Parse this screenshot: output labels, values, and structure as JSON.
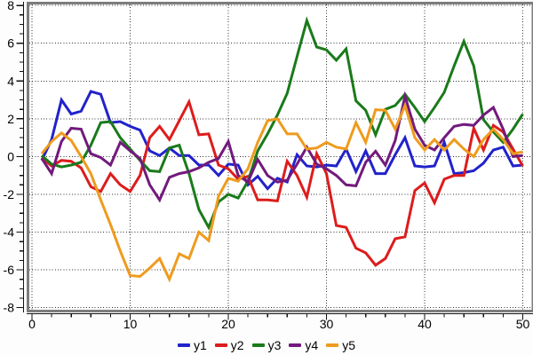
{
  "chart_data": {
    "type": "line",
    "x": [
      1,
      2,
      3,
      4,
      5,
      6,
      7,
      8,
      9,
      10,
      11,
      12,
      13,
      14,
      15,
      16,
      17,
      18,
      19,
      20,
      21,
      22,
      23,
      24,
      25,
      26,
      27,
      28,
      29,
      30,
      31,
      32,
      33,
      34,
      35,
      36,
      37,
      38,
      39,
      40,
      41,
      42,
      43,
      44,
      45,
      46,
      47,
      48,
      49,
      50
    ],
    "series": [
      {
        "name": "y1",
        "color": "#2222cc",
        "values": [
          -0.2,
          0.9,
          3.0,
          2.25,
          2.4,
          3.45,
          3.3,
          1.8,
          1.85,
          1.6,
          1.4,
          0.3,
          0.05,
          0.45,
          0.05,
          0.05,
          -0.45,
          -0.45,
          -1.0,
          -0.4,
          -0.45,
          -1.5,
          -1.05,
          -1.7,
          -1.15,
          -1.35,
          0.1,
          -0.5,
          -0.55,
          -0.45,
          -0.5,
          0.4,
          -0.8,
          0.3,
          -0.9,
          -0.9,
          0.1,
          1.0,
          -0.5,
          -0.55,
          -0.5,
          0.75,
          -0.9,
          -0.85,
          -0.75,
          -0.35,
          0.35,
          0.5,
          -0.5,
          -0.45
        ]
      },
      {
        "name": "y2",
        "color": "#dd1c1c",
        "values": [
          -0.05,
          -0.5,
          -0.2,
          -0.25,
          -0.6,
          -1.6,
          -1.85,
          -0.9,
          -1.5,
          -1.85,
          -1.0,
          1.0,
          1.6,
          0.9,
          1.9,
          2.9,
          1.15,
          1.2,
          -0.45,
          -0.65,
          -1.2,
          -1.05,
          -2.3,
          -2.3,
          -2.35,
          -0.25,
          -1.0,
          -2.15,
          0.15,
          -0.9,
          -3.65,
          -3.75,
          -4.85,
          -5.1,
          -5.75,
          -5.4,
          -4.35,
          -4.25,
          -1.8,
          -1.4,
          -2.45,
          -1.2,
          -1.0,
          -1.0,
          1.5,
          0.35,
          1.65,
          1.3,
          0.4,
          -0.5
        ]
      },
      {
        "name": "y3",
        "color": "#1a7a1a",
        "values": [
          0.05,
          -0.4,
          -0.55,
          -0.45,
          -0.3,
          0.6,
          1.8,
          1.85,
          1.0,
          0.4,
          -0.2,
          -0.75,
          -0.8,
          0.45,
          0.6,
          -0.9,
          -2.8,
          -3.75,
          -2.4,
          -2.0,
          -2.2,
          -1.3,
          0.3,
          1.2,
          2.2,
          3.35,
          5.3,
          7.2,
          5.8,
          5.65,
          5.1,
          5.7,
          2.95,
          2.45,
          1.15,
          2.5,
          2.7,
          3.3,
          2.6,
          1.85,
          2.6,
          3.4,
          4.8,
          6.1,
          4.8,
          1.95,
          1.3,
          0.75,
          1.45,
          2.25
        ]
      },
      {
        "name": "y4",
        "color": "#721a7d",
        "values": [
          -0.1,
          -0.9,
          0.8,
          1.5,
          1.45,
          0.15,
          -0.05,
          -0.45,
          0.75,
          0.3,
          -0.1,
          -1.5,
          -2.3,
          -1.1,
          -0.9,
          -0.8,
          -0.6,
          -0.3,
          -0.1,
          0.8,
          -1.0,
          -1.35,
          -0.15,
          -1.0,
          -1.35,
          -1.25,
          -0.4,
          0.5,
          -0.4,
          -0.65,
          -1.0,
          -1.5,
          -1.55,
          -0.3,
          0.28,
          -0.45,
          0.85,
          3.2,
          1.45,
          0.6,
          0.35,
          1.0,
          1.6,
          1.7,
          1.65,
          2.2,
          2.6,
          1.45,
          0.0,
          0.05
        ]
      },
      {
        "name": "y5",
        "color": "#ef9b1e",
        "values": [
          0.15,
          0.8,
          1.25,
          0.85,
          0.0,
          -0.9,
          -2.3,
          -3.6,
          -5.0,
          -6.3,
          -6.35,
          -5.9,
          -5.4,
          -6.5,
          -5.15,
          -5.4,
          -4.0,
          -4.45,
          -2.1,
          -1.15,
          -1.3,
          -0.65,
          0.75,
          1.9,
          2.0,
          1.2,
          1.2,
          0.4,
          0.45,
          0.75,
          0.5,
          0.4,
          1.8,
          0.75,
          2.48,
          2.45,
          1.45,
          2.7,
          1.0,
          0.35,
          0.9,
          0.35,
          0.9,
          0.4,
          0.0,
          0.9,
          1.45,
          0.9,
          0.15,
          0.25
        ]
      }
    ],
    "xlim": [
      0,
      51
    ],
    "ylim": [
      -8,
      8
    ],
    "x_major_ticks": [
      0,
      10,
      20,
      30,
      40,
      50
    ],
    "y_major_ticks": [
      8,
      6,
      4,
      2,
      0,
      -2,
      -4,
      -6,
      -8
    ],
    "x_minor_step": 2,
    "y_minor_step": 0.5,
    "grid": "dotted",
    "legend_position": "bottom-center",
    "colors": {
      "border": "#7d7d7d",
      "grid": "#333333",
      "axis": "#111111",
      "text": "#000000",
      "plot_bg": "#ffffff"
    }
  },
  "axes": {
    "x_tick_labels": [
      "0",
      "10",
      "20",
      "30",
      "40",
      "50"
    ],
    "y_tick_labels": [
      "8",
      "6",
      "4",
      "2",
      "0",
      "-2",
      "-4",
      "-6",
      "-8"
    ]
  },
  "legend": {
    "labels": [
      "y1",
      "y2",
      "y3",
      "y4",
      "y5"
    ]
  }
}
